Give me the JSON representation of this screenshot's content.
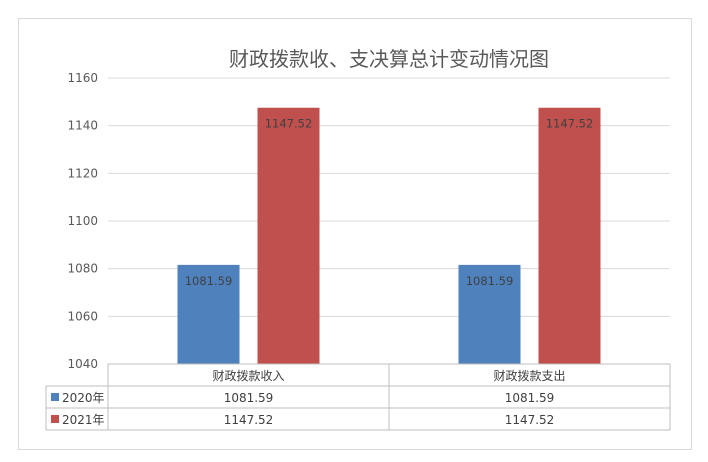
{
  "chart_data": {
    "type": "bar",
    "title": "财政拨款收、支决算总计变动情况图",
    "categories": [
      "财政拨款收入",
      "财政拨款支出"
    ],
    "series": [
      {
        "name": "2020年",
        "color": "#4f81bd",
        "values": [
          1081.59,
          1081.59
        ],
        "labels": [
          "1081.59",
          "1081.59"
        ]
      },
      {
        "name": "2021年",
        "color": "#c0504d",
        "values": [
          1147.52,
          1147.52
        ],
        "labels": [
          "1147.52",
          "1147.52"
        ]
      }
    ],
    "ylim": [
      1040,
      1160
    ],
    "yticks": [
      "1040",
      "1060",
      "1080",
      "1100",
      "1120",
      "1140",
      "1160"
    ],
    "grid": true,
    "data_table": true,
    "legend": "data-table"
  }
}
